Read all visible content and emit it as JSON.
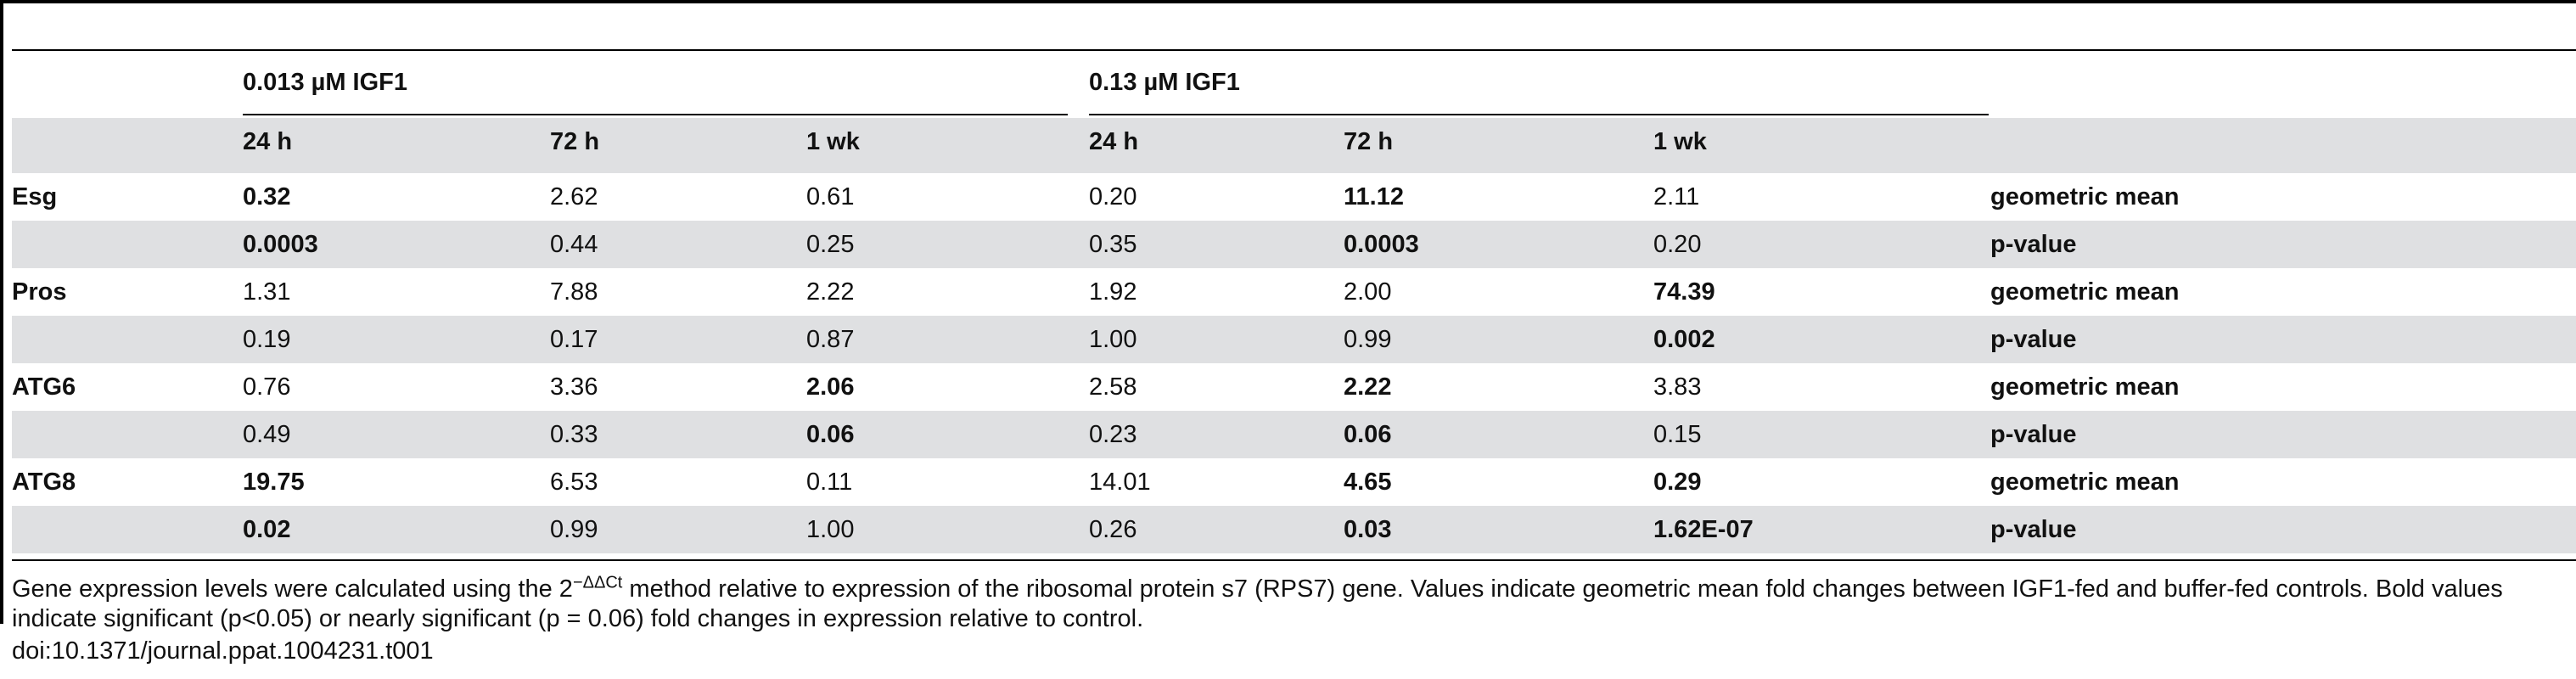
{
  "table": {
    "group_headers": [
      {
        "label": "0.013 µM IGF1"
      },
      {
        "label": "0.13 µM IGF1"
      }
    ],
    "sub_headers": [
      "24 h",
      "72 h",
      "1 wk",
      "24 h",
      "72 h",
      "1 wk"
    ],
    "rows": [
      {
        "gene": "Esg",
        "stat": "geometric mean",
        "values": [
          "0.32",
          "2.62",
          "0.61",
          "0.20",
          "11.12",
          "2.11"
        ],
        "bold": [
          true,
          false,
          false,
          false,
          true,
          false
        ],
        "shaded": false
      },
      {
        "gene": "",
        "stat": "p-value",
        "values": [
          "0.0003",
          "0.44",
          "0.25",
          "0.35",
          "0.0003",
          "0.20"
        ],
        "bold": [
          true,
          false,
          false,
          false,
          true,
          false
        ],
        "shaded": true
      },
      {
        "gene": "Pros",
        "stat": "geometric mean",
        "values": [
          "1.31",
          "7.88",
          "2.22",
          "1.92",
          "2.00",
          "74.39"
        ],
        "bold": [
          false,
          false,
          false,
          false,
          false,
          true
        ],
        "shaded": false
      },
      {
        "gene": "",
        "stat": "p-value",
        "values": [
          "0.19",
          "0.17",
          "0.87",
          "1.00",
          "0.99",
          "0.002"
        ],
        "bold": [
          false,
          false,
          false,
          false,
          false,
          true
        ],
        "shaded": true
      },
      {
        "gene": "ATG6",
        "stat": "geometric mean",
        "values": [
          "0.76",
          "3.36",
          "2.06",
          "2.58",
          "2.22",
          "3.83"
        ],
        "bold": [
          false,
          false,
          true,
          false,
          true,
          false
        ],
        "shaded": false
      },
      {
        "gene": "",
        "stat": "p-value",
        "values": [
          "0.49",
          "0.33",
          "0.06",
          "0.23",
          "0.06",
          "0.15"
        ],
        "bold": [
          false,
          false,
          true,
          false,
          true,
          false
        ],
        "shaded": true
      },
      {
        "gene": "ATG8",
        "stat": "geometric mean",
        "values": [
          "19.75",
          "6.53",
          "0.11",
          "14.01",
          "4.65",
          "0.29"
        ],
        "bold": [
          true,
          false,
          false,
          false,
          true,
          true
        ],
        "shaded": false
      },
      {
        "gene": "",
        "stat": "p-value",
        "values": [
          "0.02",
          "0.99",
          "1.00",
          "0.26",
          "0.03",
          "1.62E-07"
        ],
        "bold": [
          true,
          false,
          false,
          false,
          true,
          true
        ],
        "shaded": true
      }
    ]
  },
  "footnote": {
    "part1": "Gene expression levels were calculated using the 2",
    "superscript": "−ΔΔCt",
    "part2": " method relative to expression of the ribosomal protein s7 (RPS7) gene. Values indicate geometric mean fold changes between IGF1-fed and buffer-fed controls. Bold values indicate significant (p<0.05) or nearly significant (p = 0.06) fold changes in expression relative to control."
  },
  "doi": "doi:10.1371/journal.ppat.1004231.t001"
}
